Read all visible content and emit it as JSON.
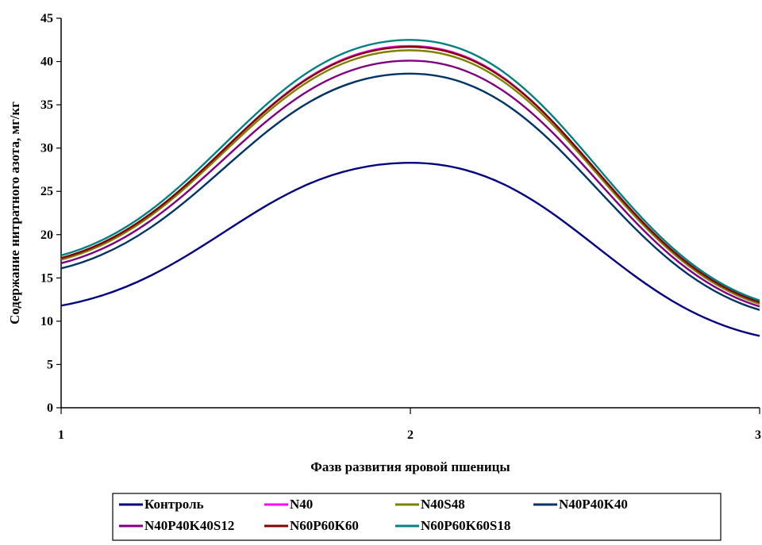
{
  "chart_data": {
    "type": "line",
    "title": "",
    "xlabel": "Фазв развития  яровой пшеницы",
    "ylabel": "Содержание нитратного азота, мг/кг",
    "x": [
      1,
      2,
      3
    ],
    "xlim": [
      1,
      3
    ],
    "ylim": [
      0,
      45
    ],
    "y_ticks": [
      0,
      5,
      10,
      15,
      20,
      25,
      30,
      35,
      40,
      45
    ],
    "x_ticks": [
      1,
      2,
      3
    ],
    "grid": false,
    "smooth": true,
    "legend_position": "bottom",
    "series": [
      {
        "name": "Контроль",
        "values": [
          11.8,
          28.3,
          8.3
        ],
        "color": "#000080"
      },
      {
        "name": "N40",
        "values": [
          17.2,
          41.8,
          12.0
        ],
        "color": "#FF00FF"
      },
      {
        "name": "N40S48",
        "values": [
          17.1,
          41.3,
          12.0
        ],
        "color": "#808000"
      },
      {
        "name": "N40P40K40",
        "values": [
          16.1,
          38.6,
          11.3
        ],
        "color": "#003366"
      },
      {
        "name": "N40P40K40S12",
        "values": [
          16.7,
          40.1,
          11.7
        ],
        "color": "#800080"
      },
      {
        "name": "N60P60K60",
        "values": [
          17.3,
          41.7,
          12.2
        ],
        "color": "#800000"
      },
      {
        "name": "N60P60K60S18",
        "values": [
          17.6,
          42.5,
          12.4
        ],
        "color": "#008080"
      }
    ]
  }
}
